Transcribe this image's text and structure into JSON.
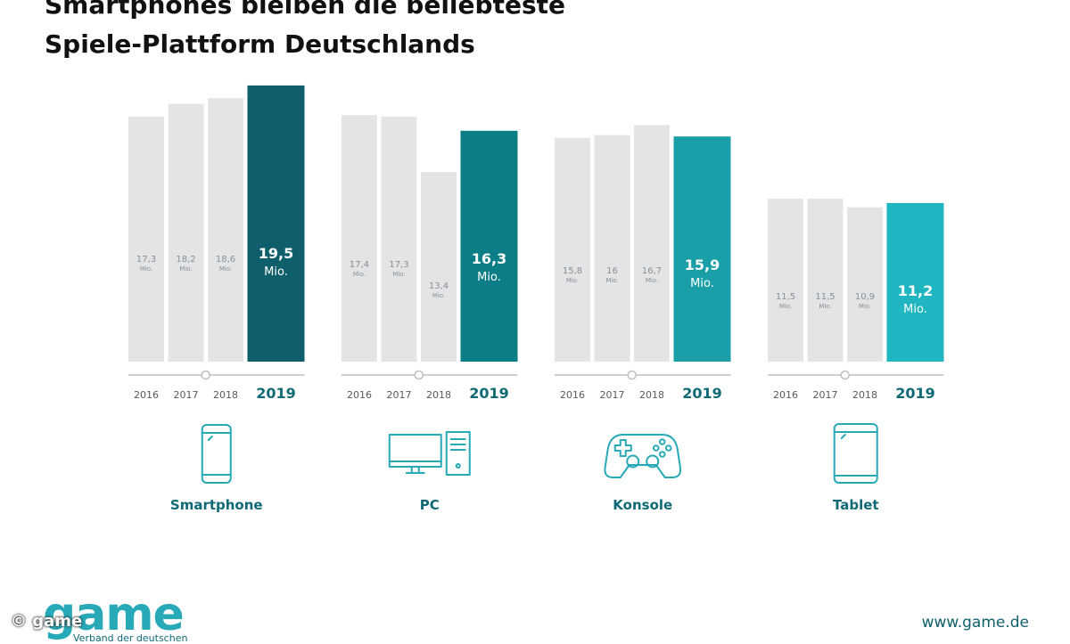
{
  "title_line1": "Smartphones bleiben die beliebteste",
  "title_line2": "Spiele-Plattform Deutschlands",
  "colors": {
    "bar_gray": "#e2e4e5",
    "gray_text": "#8a8f94",
    "axis": "#bcc0c4",
    "label": "#0f6a75",
    "icon": "#27a9b8",
    "highlight": [
      "#0e5f6b",
      "#0b7d86",
      "#1a9ea8",
      "#1fb5c1"
    ]
  },
  "chart_data": {
    "type": "bar",
    "title": "Smartphones bleiben die beliebteste Spiele-Plattform Deutschlands",
    "unit": "Mio.",
    "categories": [
      "2016",
      "2017",
      "2018",
      "2019"
    ],
    "ylim": [
      0,
      20
    ],
    "series": [
      {
        "name": "Smartphone",
        "icon": "smartphone-icon",
        "values": [
          17.3,
          18.2,
          18.6,
          19.5
        ],
        "labels": [
          "17,3",
          "18,2",
          "18,6",
          "19,5"
        ]
      },
      {
        "name": "PC",
        "icon": "pc-icon",
        "values": [
          17.4,
          17.3,
          13.4,
          16.3
        ],
        "labels": [
          "17,4",
          "17,3",
          "13,4",
          "16,3"
        ]
      },
      {
        "name": "Konsole",
        "icon": "gamepad-icon",
        "values": [
          15.8,
          16,
          16.7,
          15.9
        ],
        "labels": [
          "15,8",
          "16",
          "16,7",
          "15,9"
        ]
      },
      {
        "name": "Tablet",
        "icon": "tablet-icon",
        "values": [
          11.5,
          11.5,
          10.9,
          11.2
        ],
        "labels": [
          "11,5",
          "11,5",
          "10,9",
          "11,2"
        ]
      }
    ]
  },
  "footer": {
    "copyright": "© game",
    "logo": "game",
    "logo_sub": "Verband der deutschen",
    "url": "www.game.de"
  }
}
